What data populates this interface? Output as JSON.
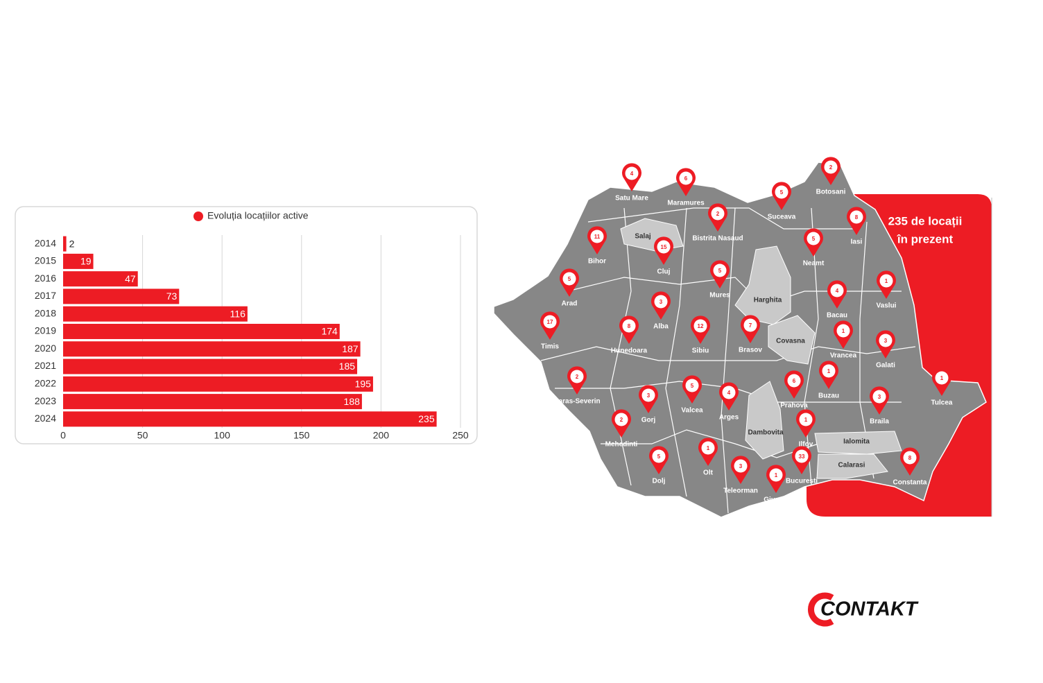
{
  "chart_data": {
    "type": "bar",
    "orientation": "horizontal",
    "legend": "Evoluția locațiilor active",
    "categories": [
      "2014",
      "2015",
      "2016",
      "2017",
      "2018",
      "2019",
      "2020",
      "2021",
      "2022",
      "2023",
      "2024"
    ],
    "values": [
      2,
      19,
      47,
      73,
      116,
      174,
      187,
      185,
      195,
      188,
      235
    ],
    "color": "#ed1c24",
    "xlim": [
      0,
      250
    ],
    "xticks": [
      0,
      50,
      100,
      150,
      200,
      250
    ],
    "grid": true
  },
  "map": {
    "counties": [
      {
        "name": "Satu Mare",
        "count": 4
      },
      {
        "name": "Maramures",
        "count": 6
      },
      {
        "name": "Botosani",
        "count": 2
      },
      {
        "name": "Suceava",
        "count": 5
      },
      {
        "name": "Bistrita Nasaud",
        "count": 2
      },
      {
        "name": "Iasi",
        "count": 8
      },
      {
        "name": "Bihor",
        "count": 11
      },
      {
        "name": "Cluj",
        "count": 15
      },
      {
        "name": "Neamt",
        "count": 5
      },
      {
        "name": "Mures",
        "count": 5
      },
      {
        "name": "Arad",
        "count": 5
      },
      {
        "name": "Vaslui",
        "count": 1
      },
      {
        "name": "Bacau",
        "count": 4
      },
      {
        "name": "Alba",
        "count": 3
      },
      {
        "name": "Timis",
        "count": 17
      },
      {
        "name": "Hunedoara",
        "count": 8
      },
      {
        "name": "Sibiu",
        "count": 12
      },
      {
        "name": "Brasov",
        "count": 7
      },
      {
        "name": "Vrancea",
        "count": 1
      },
      {
        "name": "Galati",
        "count": 3
      },
      {
        "name": "Caras-Severin",
        "count": 2
      },
      {
        "name": "Buzau",
        "count": 1
      },
      {
        "name": "Prahova",
        "count": 6
      },
      {
        "name": "Tulcea",
        "count": 1
      },
      {
        "name": "Valcea",
        "count": 5
      },
      {
        "name": "Arges",
        "count": 4
      },
      {
        "name": "Gorj",
        "count": 3
      },
      {
        "name": "Braila",
        "count": 3
      },
      {
        "name": "Mehedinti",
        "count": 2
      },
      {
        "name": "Ilfov",
        "count": 1
      },
      {
        "name": "Olt",
        "count": 1
      },
      {
        "name": "Dolj",
        "count": 5
      },
      {
        "name": "Bucuresti",
        "count": 33
      },
      {
        "name": "Constanta",
        "count": 8
      },
      {
        "name": "Teleorman",
        "count": 3
      },
      {
        "name": "Giurgiu",
        "count": 1
      }
    ],
    "regions": [
      "Salaj",
      "Harghita",
      "Covasna",
      "Dambovita",
      "Ialomita",
      "Calarasi"
    ]
  },
  "callout": {
    "lines": [
      "235 de locații",
      "în prezent"
    ]
  },
  "logo": "CONTAKT"
}
